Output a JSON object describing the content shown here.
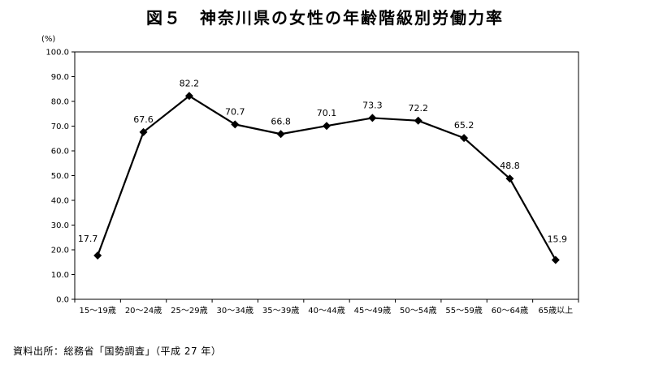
{
  "chart_data": {
    "type": "line",
    "title": "図５　神奈川県の女性の年齢階級別労働力率",
    "ylabel": "(%)",
    "xlabel": "",
    "ylim": [
      0,
      100
    ],
    "yticks": [
      "0.0",
      "10.0",
      "20.0",
      "30.0",
      "40.0",
      "50.0",
      "60.0",
      "70.0",
      "80.0",
      "90.0",
      "100.0"
    ],
    "categories": [
      "15～19歳",
      "20～24歳",
      "25～29歳",
      "30～34歳",
      "35～39歳",
      "40～44歳",
      "45～49歳",
      "50～54歳",
      "55～59歳",
      "60～64歳",
      "65歳以上"
    ],
    "values": [
      17.7,
      67.6,
      82.2,
      70.7,
      66.8,
      70.1,
      73.3,
      72.2,
      65.2,
      48.8,
      15.9
    ],
    "value_labels": [
      "17.7",
      "67.6",
      "82.2",
      "70.7",
      "66.8",
      "70.1",
      "73.3",
      "72.2",
      "65.2",
      "48.8",
      "15.9"
    ],
    "grid": false,
    "line_color": "#000000",
    "marker": "diamond"
  },
  "source": "資料出所：総務省「国勢調査」（平成 27 年）"
}
